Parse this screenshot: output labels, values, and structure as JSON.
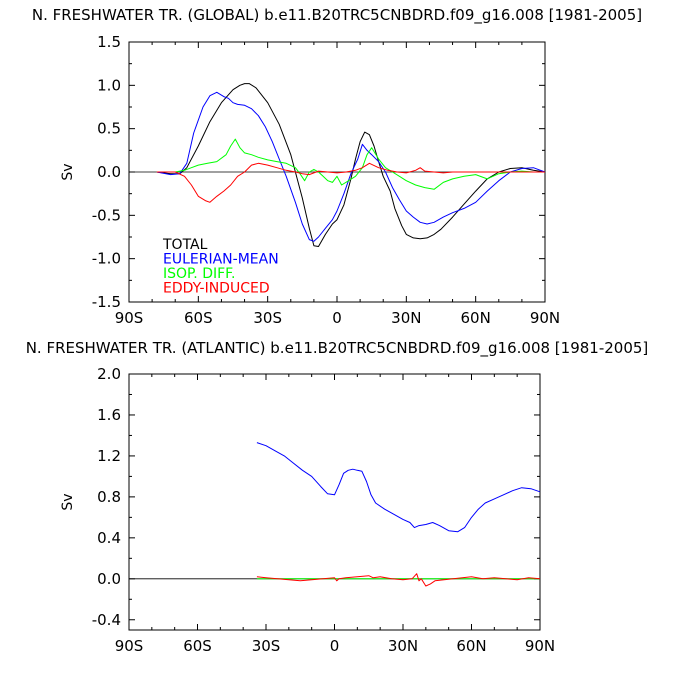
{
  "chart_data": [
    {
      "type": "line",
      "title": "N. FRESHWATER TR. (GLOBAL) b.e11.B20TRC5CNBDRD.f09_g16.008 [1981-2005]",
      "xlabel": "",
      "ylabel": "Sv",
      "xlim": [
        -90,
        90
      ],
      "ylim": [
        -1.5,
        1.5
      ],
      "xticks": [
        -90,
        -60,
        -30,
        0,
        30,
        60,
        90
      ],
      "xtick_labels": [
        "90S",
        "60S",
        "30S",
        "0",
        "30N",
        "60N",
        "90N"
      ],
      "yticks": [
        1.5,
        1.0,
        0.5,
        0.0,
        -0.5,
        -1.0,
        -1.5
      ],
      "ytick_labels": [
        "1.5",
        "1.0",
        "0.5",
        "0.0",
        "-0.5",
        "-1.0",
        "-1.5"
      ],
      "zero_line": true,
      "legend_position": "lower-left",
      "series": [
        {
          "name": "TOTAL",
          "color": "#000000",
          "x": [
            -78,
            -72,
            -68,
            -65,
            -60,
            -55,
            -50,
            -45,
            -42,
            -40,
            -38,
            -35,
            -30,
            -25,
            -20,
            -15,
            -12,
            -10,
            -8,
            -5,
            -2,
            0,
            3,
            6,
            8,
            10,
            12,
            14,
            16,
            18,
            20,
            23,
            25,
            28,
            30,
            33,
            36,
            39,
            42,
            45,
            50,
            55,
            60,
            65,
            70,
            75,
            80,
            85,
            90
          ],
          "y": [
            0.0,
            -0.02,
            -0.02,
            0.05,
            0.3,
            0.58,
            0.8,
            0.95,
            1.0,
            1.02,
            1.02,
            0.97,
            0.8,
            0.55,
            0.2,
            -0.3,
            -0.65,
            -0.85,
            -0.86,
            -0.72,
            -0.6,
            -0.55,
            -0.38,
            -0.08,
            0.15,
            0.35,
            0.46,
            0.43,
            0.3,
            0.12,
            -0.05,
            -0.22,
            -0.42,
            -0.62,
            -0.72,
            -0.76,
            -0.77,
            -0.76,
            -0.72,
            -0.66,
            -0.52,
            -0.37,
            -0.22,
            -0.08,
            0.0,
            0.04,
            0.05,
            0.02,
            0.0
          ]
        },
        {
          "name": "EULERIAN-MEAN",
          "color": "#0000ff",
          "x": [
            -78,
            -72,
            -68,
            -65,
            -62,
            -58,
            -55,
            -52,
            -49,
            -47,
            -45,
            -43,
            -40,
            -37,
            -34,
            -31,
            -28,
            -25,
            -22,
            -18,
            -15,
            -12,
            -10,
            -8,
            -5,
            -2,
            0,
            3,
            6,
            9,
            11,
            13,
            15,
            18,
            21,
            24,
            27,
            30,
            33,
            36,
            39,
            42,
            46,
            50,
            55,
            60,
            65,
            70,
            75,
            80,
            85,
            90
          ],
          "y": [
            0.0,
            -0.03,
            -0.02,
            0.1,
            0.45,
            0.75,
            0.88,
            0.92,
            0.87,
            0.85,
            0.8,
            0.78,
            0.77,
            0.73,
            0.65,
            0.52,
            0.35,
            0.15,
            -0.05,
            -0.35,
            -0.6,
            -0.78,
            -0.8,
            -0.75,
            -0.65,
            -0.55,
            -0.45,
            -0.25,
            -0.02,
            0.15,
            0.32,
            0.25,
            0.2,
            0.12,
            0.0,
            -0.18,
            -0.32,
            -0.45,
            -0.52,
            -0.58,
            -0.6,
            -0.58,
            -0.52,
            -0.47,
            -0.42,
            -0.35,
            -0.22,
            -0.1,
            0.0,
            0.04,
            0.05,
            0.0
          ]
        },
        {
          "name": "ISOP. DIFF.",
          "color": "#00ff00",
          "x": [
            -78,
            -70,
            -66,
            -63,
            -60,
            -56,
            -52,
            -48,
            -46,
            -44,
            -42,
            -40,
            -37,
            -34,
            -30,
            -26,
            -22,
            -18,
            -16,
            -14,
            -12,
            -10,
            -8,
            -6,
            -4,
            -2,
            0,
            2,
            5,
            8,
            11,
            13,
            15,
            18,
            21,
            24,
            27,
            30,
            34,
            38,
            42,
            46,
            50,
            55,
            60,
            65,
            70,
            75,
            80,
            85,
            90
          ],
          "y": [
            0.0,
            0.0,
            0.02,
            0.05,
            0.08,
            0.1,
            0.12,
            0.2,
            0.3,
            0.38,
            0.28,
            0.22,
            0.2,
            0.17,
            0.14,
            0.12,
            0.1,
            0.05,
            -0.02,
            -0.1,
            0.0,
            0.03,
            0.0,
            -0.05,
            -0.1,
            -0.12,
            -0.05,
            -0.15,
            -0.1,
            -0.05,
            0.05,
            0.2,
            0.28,
            0.15,
            0.05,
            0.0,
            -0.05,
            -0.1,
            -0.15,
            -0.18,
            -0.2,
            -0.12,
            -0.08,
            -0.05,
            -0.03,
            -0.08,
            -0.02,
            0.0,
            0.01,
            0.0,
            0.0
          ]
        },
        {
          "name": "EDDY-INDUCED",
          "color": "#ff0000",
          "x": [
            -78,
            -70,
            -66,
            -63,
            -60,
            -57,
            -55,
            -52,
            -49,
            -46,
            -43,
            -40,
            -37,
            -34,
            -30,
            -26,
            -22,
            -18,
            -15,
            -12,
            -8,
            -4,
            0,
            4,
            8,
            11,
            14,
            18,
            22,
            26,
            30,
            34,
            36,
            38,
            42,
            46,
            50,
            55,
            60,
            65,
            70,
            75,
            80,
            85,
            90
          ],
          "y": [
            0.0,
            0.0,
            -0.05,
            -0.15,
            -0.28,
            -0.33,
            -0.35,
            -0.28,
            -0.22,
            -0.15,
            -0.05,
            0.0,
            0.08,
            0.1,
            0.08,
            0.05,
            0.02,
            0.0,
            -0.02,
            -0.03,
            0.01,
            0.0,
            -0.01,
            0.0,
            0.02,
            0.05,
            0.1,
            0.05,
            0.02,
            0.0,
            -0.01,
            0.02,
            0.05,
            0.01,
            0.0,
            -0.01,
            0.0,
            0.0,
            0.0,
            0.0,
            0.0,
            0.0,
            0.0,
            0.0,
            0.0
          ]
        }
      ]
    },
    {
      "type": "line",
      "title": "N. FRESHWATER TR. (ATLANTIC) b.e11.B20TRC5CNBDRD.f09_g16.008 [1981-2005]",
      "xlabel": "",
      "ylabel": "Sv",
      "xlim": [
        -90,
        90
      ],
      "ylim": [
        -0.5,
        2.0
      ],
      "xticks": [
        -90,
        -60,
        -30,
        0,
        30,
        60,
        90
      ],
      "xtick_labels": [
        "90S",
        "60S",
        "30S",
        "0",
        "30N",
        "60N",
        "90N"
      ],
      "yticks": [
        2.0,
        1.6,
        1.2,
        0.8,
        0.4,
        0.0,
        -0.4
      ],
      "ytick_labels": [
        "2.0",
        "1.6",
        "1.2",
        "0.8",
        "0.4",
        "0.0",
        "-0.4"
      ],
      "zero_line": true,
      "series": [
        {
          "name": "EULERIAN-MEAN",
          "color": "#0000ff",
          "x": [
            -34,
            -30,
            -26,
            -22,
            -18,
            -14,
            -10,
            -6,
            -3,
            0,
            2,
            4,
            6,
            8,
            10,
            12,
            14,
            16,
            18,
            22,
            26,
            30,
            33,
            35,
            37,
            40,
            43,
            46,
            50,
            54,
            57,
            60,
            63,
            66,
            70,
            74,
            78,
            82,
            86,
            90
          ],
          "y": [
            1.33,
            1.3,
            1.25,
            1.2,
            1.13,
            1.06,
            1.0,
            0.9,
            0.83,
            0.82,
            0.92,
            1.03,
            1.06,
            1.07,
            1.06,
            1.05,
            0.95,
            0.82,
            0.74,
            0.68,
            0.63,
            0.58,
            0.55,
            0.5,
            0.52,
            0.53,
            0.55,
            0.52,
            0.47,
            0.46,
            0.5,
            0.6,
            0.68,
            0.74,
            0.78,
            0.82,
            0.86,
            0.89,
            0.88,
            0.85
          ]
        },
        {
          "name": "ISOP. DIFF.",
          "color": "#00ff00",
          "x": [
            -34,
            -20,
            -10,
            0,
            10,
            20,
            30,
            36,
            40,
            44,
            50,
            60,
            70,
            80,
            90
          ],
          "y": [
            0.0,
            0.0,
            0.0,
            0.0,
            0.0,
            0.0,
            0.0,
            0.0,
            0.0,
            0.0,
            0.0,
            0.0,
            0.0,
            0.0,
            0.0
          ]
        },
        {
          "name": "EDDY-INDUCED",
          "color": "#ff0000",
          "x": [
            -34,
            -30,
            -25,
            -20,
            -15,
            -10,
            -5,
            0,
            1,
            2,
            5,
            10,
            15,
            17,
            20,
            25,
            30,
            34,
            36,
            37,
            38,
            40,
            42,
            44,
            48,
            52,
            56,
            60,
            65,
            70,
            75,
            80,
            85,
            90
          ],
          "y": [
            0.02,
            0.01,
            0.0,
            -0.01,
            -0.02,
            -0.01,
            0.0,
            0.01,
            -0.02,
            0.0,
            0.01,
            0.02,
            0.03,
            0.01,
            0.02,
            0.0,
            -0.01,
            0.0,
            0.05,
            -0.02,
            0.0,
            -0.07,
            -0.05,
            -0.02,
            -0.01,
            0.0,
            0.01,
            0.02,
            0.0,
            0.01,
            0.0,
            -0.01,
            0.01,
            0.0
          ]
        }
      ]
    }
  ]
}
